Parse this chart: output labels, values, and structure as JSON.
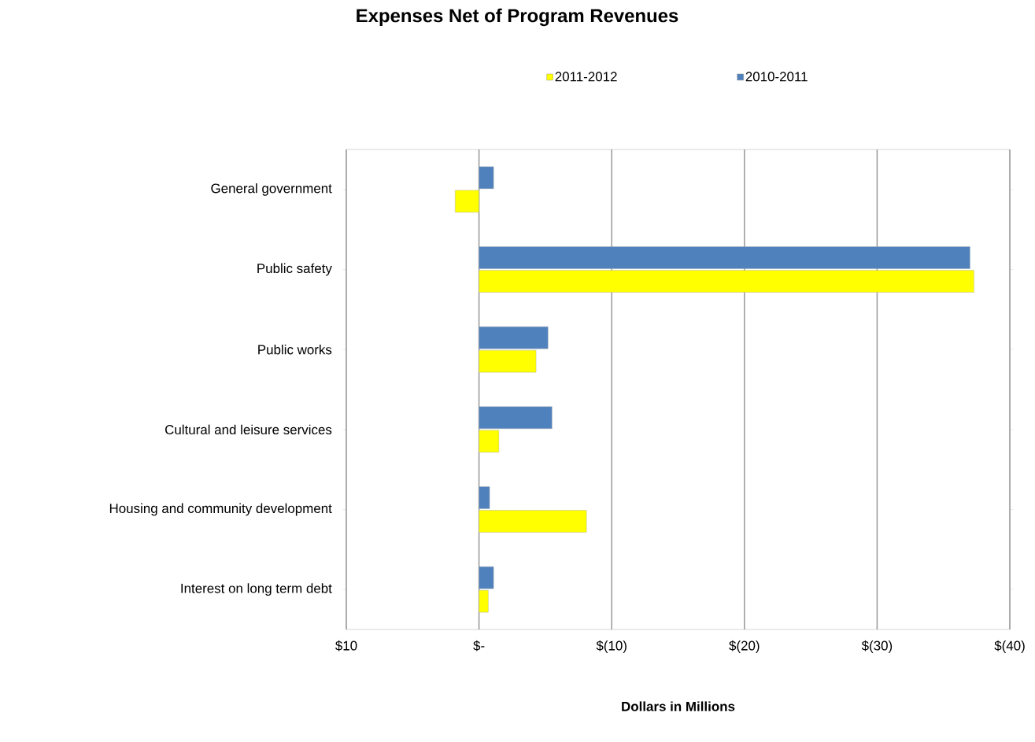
{
  "chart_data": {
    "type": "bar",
    "orientation": "horizontal",
    "title": "Expenses Net of Program Revenues",
    "xlabel": "Dollars in Millions",
    "categories": [
      "General government",
      "Public safety",
      "Public works",
      "Cultural and leisure services",
      "Housing and community development",
      "Interest on long term debt"
    ],
    "series": [
      {
        "name": "2011-2012",
        "color": "#ffff00",
        "values": [
          1.8,
          -37.3,
          -4.3,
          -1.5,
          -8.1,
          -0.7
        ]
      },
      {
        "name": "2010-2011",
        "color": "#4f81bd",
        "values": [
          -1.1,
          -37.0,
          -5.2,
          -5.5,
          -0.8,
          -1.1
        ]
      }
    ],
    "xlim": [
      10,
      -40
    ],
    "xticks": [
      {
        "value": 10,
        "label": "$10"
      },
      {
        "value": 0,
        "label": "$-"
      },
      {
        "value": -10,
        "label": "$(10)"
      },
      {
        "value": -20,
        "label": "$(20)"
      },
      {
        "value": -30,
        "label": "$(30)"
      },
      {
        "value": -40,
        "label": "$(40)"
      }
    ],
    "grid": "x",
    "legend": "top"
  }
}
